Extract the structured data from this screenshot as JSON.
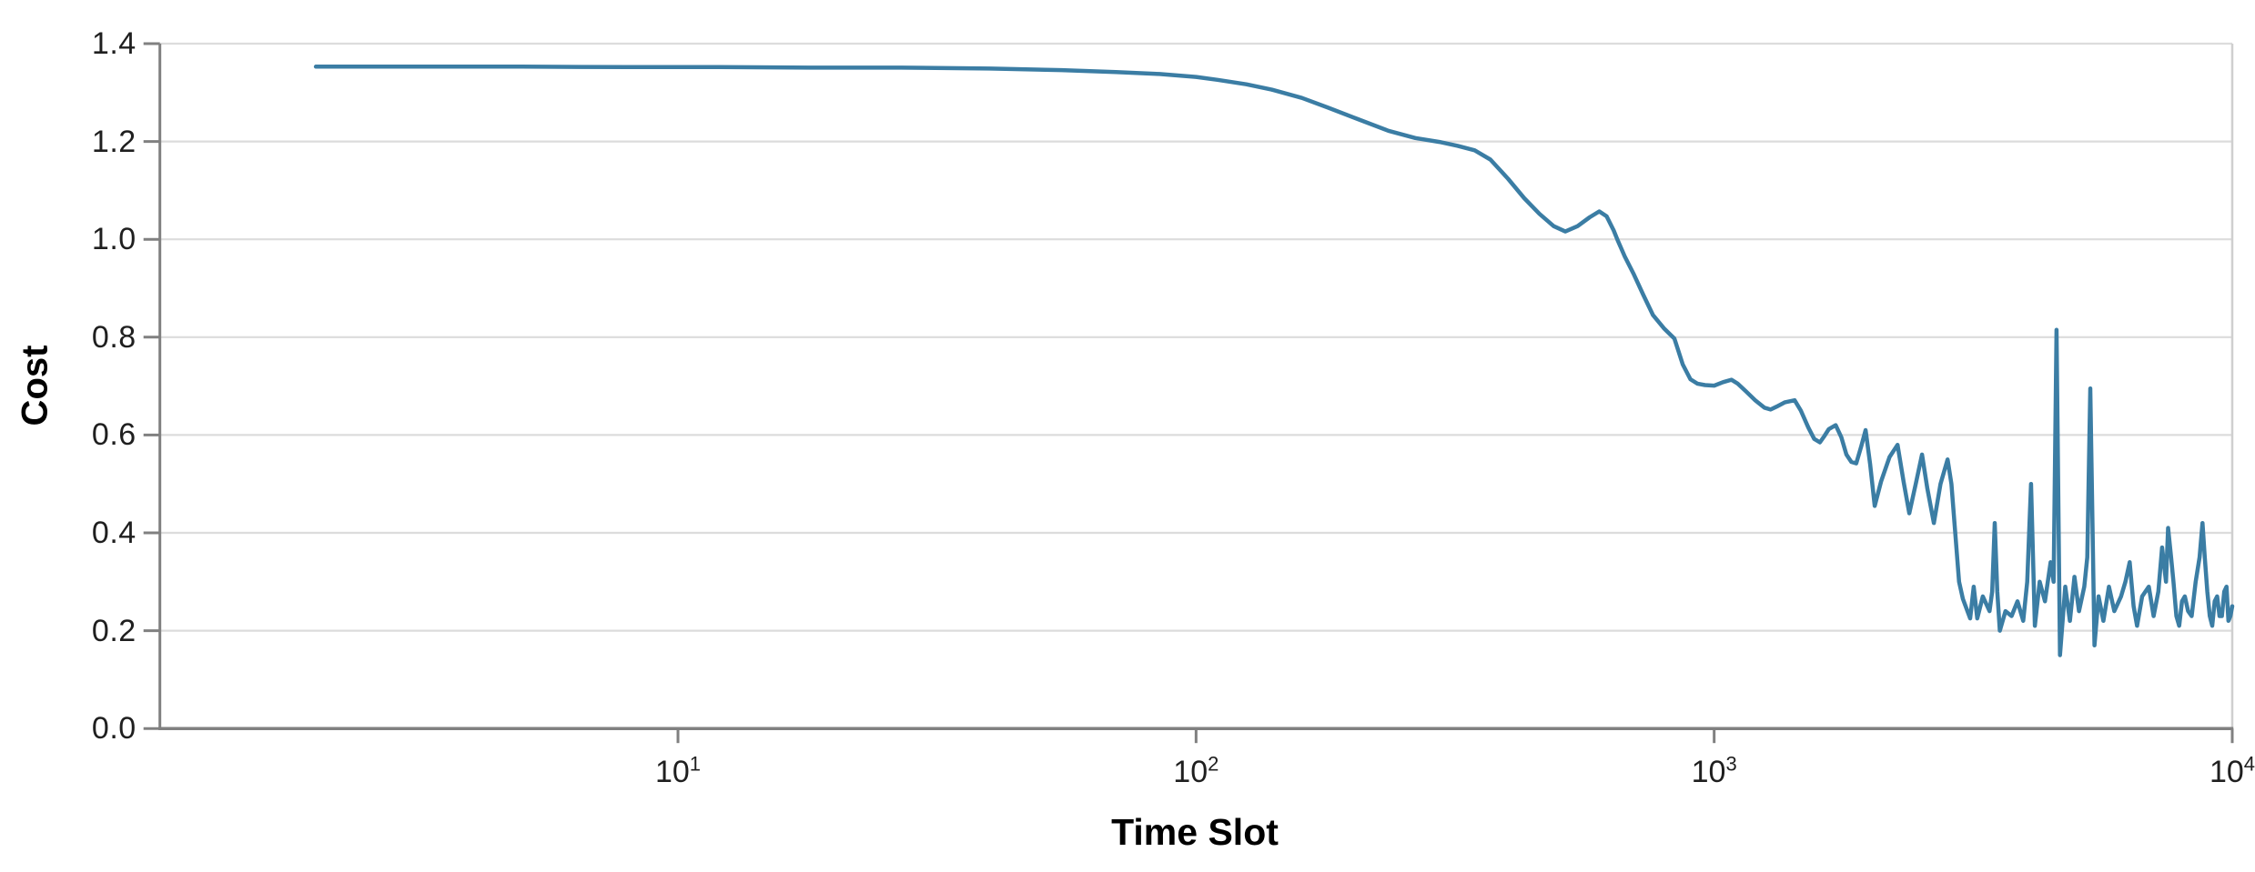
{
  "chart_data": {
    "type": "line",
    "title": "",
    "xlabel": "Time Slot",
    "ylabel": "Cost",
    "x_scale": "log",
    "xlim": [
      1,
      10000
    ],
    "ylim": [
      0.0,
      1.4
    ],
    "grid": "horizontal",
    "legend": "none",
    "colors": {
      "line": "#3b7da4",
      "grid": "#dcdcdc",
      "spine": "#808080",
      "right_spine": "#cfcfcf",
      "tick_mark": "#808080",
      "tick_label": "#1f1f1f",
      "axis_label": "#000000"
    },
    "y_ticks": [
      {
        "label": "0.0",
        "value": 0.0
      },
      {
        "label": "0.2",
        "value": 0.2
      },
      {
        "label": "0.4",
        "value": 0.4
      },
      {
        "label": "0.6",
        "value": 0.6
      },
      {
        "label": "0.8",
        "value": 0.8
      },
      {
        "label": "1.0",
        "value": 1.0
      },
      {
        "label": "1.2",
        "value": 1.2
      },
      {
        "label": "1.4",
        "value": 1.4
      }
    ],
    "x_ticks": [
      {
        "base": "10",
        "exp": "1",
        "value": 10
      },
      {
        "base": "10",
        "exp": "2",
        "value": 100
      },
      {
        "base": "10",
        "exp": "3",
        "value": 1000
      },
      {
        "base": "10",
        "exp": "4",
        "value": 10000
      }
    ],
    "series": [
      {
        "name": "Cost",
        "points": [
          [
            2,
            1.353
          ],
          [
            3,
            1.353
          ],
          [
            5,
            1.353
          ],
          [
            8,
            1.352
          ],
          [
            12,
            1.352
          ],
          [
            18,
            1.351
          ],
          [
            27,
            1.351
          ],
          [
            40,
            1.349
          ],
          [
            55,
            1.346
          ],
          [
            70,
            1.342
          ],
          [
            85,
            1.338
          ],
          [
            100,
            1.332
          ],
          [
            110,
            1.326
          ],
          [
            125,
            1.317
          ],
          [
            140,
            1.306
          ],
          [
            160,
            1.289
          ],
          [
            180,
            1.269
          ],
          [
            205,
            1.246
          ],
          [
            235,
            1.222
          ],
          [
            265,
            1.207
          ],
          [
            295,
            1.199
          ],
          [
            320,
            1.191
          ],
          [
            345,
            1.182
          ],
          [
            370,
            1.163
          ],
          [
            400,
            1.124
          ],
          [
            430,
            1.084
          ],
          [
            460,
            1.052
          ],
          [
            490,
            1.027
          ],
          [
            516,
            1.016
          ],
          [
            545,
            1.027
          ],
          [
            575,
            1.045
          ],
          [
            600,
            1.057
          ],
          [
            620,
            1.047
          ],
          [
            640,
            1.018
          ],
          [
            650,
            1.0
          ],
          [
            672,
            0.965
          ],
          [
            700,
            0.928
          ],
          [
            730,
            0.886
          ],
          [
            762,
            0.845
          ],
          [
            800,
            0.818
          ],
          [
            838,
            0.797
          ],
          [
            870,
            0.744
          ],
          [
            900,
            0.714
          ],
          [
            928,
            0.705
          ],
          [
            960,
            0.702
          ],
          [
            1000,
            0.701
          ],
          [
            1040,
            0.708
          ],
          [
            1080,
            0.713
          ],
          [
            1110,
            0.705
          ],
          [
            1150,
            0.69
          ],
          [
            1200,
            0.671
          ],
          [
            1250,
            0.656
          ],
          [
            1285,
            0.652
          ],
          [
            1320,
            0.658
          ],
          [
            1370,
            0.667
          ],
          [
            1430,
            0.671
          ],
          [
            1470,
            0.65
          ],
          [
            1520,
            0.615
          ],
          [
            1560,
            0.592
          ],
          [
            1600,
            0.585
          ],
          [
            1630,
            0.597
          ],
          [
            1665,
            0.612
          ],
          [
            1716,
            0.62
          ],
          [
            1760,
            0.595
          ],
          [
            1800,
            0.56
          ],
          [
            1840,
            0.545
          ],
          [
            1880,
            0.542
          ],
          [
            1920,
            0.575
          ],
          [
            1960,
            0.61
          ],
          [
            2000,
            0.54
          ],
          [
            2041,
            0.455
          ],
          [
            2100,
            0.505
          ],
          [
            2180,
            0.555
          ],
          [
            2259,
            0.58
          ],
          [
            2320,
            0.505
          ],
          [
            2380,
            0.44
          ],
          [
            2450,
            0.5
          ],
          [
            2519,
            0.56
          ],
          [
            2580,
            0.49
          ],
          [
            2655,
            0.42
          ],
          [
            2735,
            0.5
          ],
          [
            2822,
            0.55
          ],
          [
            2870,
            0.5
          ],
          [
            2920,
            0.4
          ],
          [
            2970,
            0.3
          ],
          [
            3020,
            0.265
          ],
          [
            3070,
            0.245
          ],
          [
            3120,
            0.225
          ],
          [
            3170,
            0.29
          ],
          [
            3220,
            0.225
          ],
          [
            3300,
            0.27
          ],
          [
            3400,
            0.24
          ],
          [
            3440,
            0.28
          ],
          [
            3480,
            0.42
          ],
          [
            3520,
            0.28
          ],
          [
            3560,
            0.2
          ],
          [
            3650,
            0.24
          ],
          [
            3750,
            0.23
          ],
          [
            3850,
            0.26
          ],
          [
            3950,
            0.22
          ],
          [
            4020,
            0.3
          ],
          [
            4090,
            0.5
          ],
          [
            4160,
            0.21
          ],
          [
            4250,
            0.3
          ],
          [
            4350,
            0.26
          ],
          [
            4460,
            0.34
          ],
          [
            4520,
            0.3
          ],
          [
            4580,
            0.815
          ],
          [
            4650,
            0.15
          ],
          [
            4760,
            0.29
          ],
          [
            4860,
            0.22
          ],
          [
            4960,
            0.31
          ],
          [
            5060,
            0.24
          ],
          [
            5180,
            0.29
          ],
          [
            5250,
            0.35
          ],
          [
            5320,
            0.695
          ],
          [
            5420,
            0.17
          ],
          [
            5520,
            0.27
          ],
          [
            5640,
            0.22
          ],
          [
            5780,
            0.29
          ],
          [
            5920,
            0.24
          ],
          [
            6100,
            0.27
          ],
          [
            6220,
            0.3
          ],
          [
            6340,
            0.34
          ],
          [
            6450,
            0.25
          ],
          [
            6550,
            0.21
          ],
          [
            6700,
            0.27
          ],
          [
            6900,
            0.29
          ],
          [
            7050,
            0.23
          ],
          [
            7200,
            0.28
          ],
          [
            7320,
            0.37
          ],
          [
            7450,
            0.3
          ],
          [
            7520,
            0.41
          ],
          [
            7620,
            0.35
          ],
          [
            7700,
            0.3
          ],
          [
            7800,
            0.23
          ],
          [
            7900,
            0.21
          ],
          [
            8000,
            0.26
          ],
          [
            8100,
            0.27
          ],
          [
            8220,
            0.24
          ],
          [
            8350,
            0.23
          ],
          [
            8500,
            0.3
          ],
          [
            8650,
            0.35
          ],
          [
            8760,
            0.42
          ],
          [
            8850,
            0.35
          ],
          [
            8950,
            0.28
          ],
          [
            9050,
            0.23
          ],
          [
            9150,
            0.21
          ],
          [
            9250,
            0.26
          ],
          [
            9350,
            0.27
          ],
          [
            9450,
            0.23
          ],
          [
            9550,
            0.23
          ],
          [
            9650,
            0.28
          ],
          [
            9750,
            0.29
          ],
          [
            9830,
            0.22
          ],
          [
            9920,
            0.23
          ],
          [
            10000,
            0.25
          ]
        ]
      }
    ]
  }
}
